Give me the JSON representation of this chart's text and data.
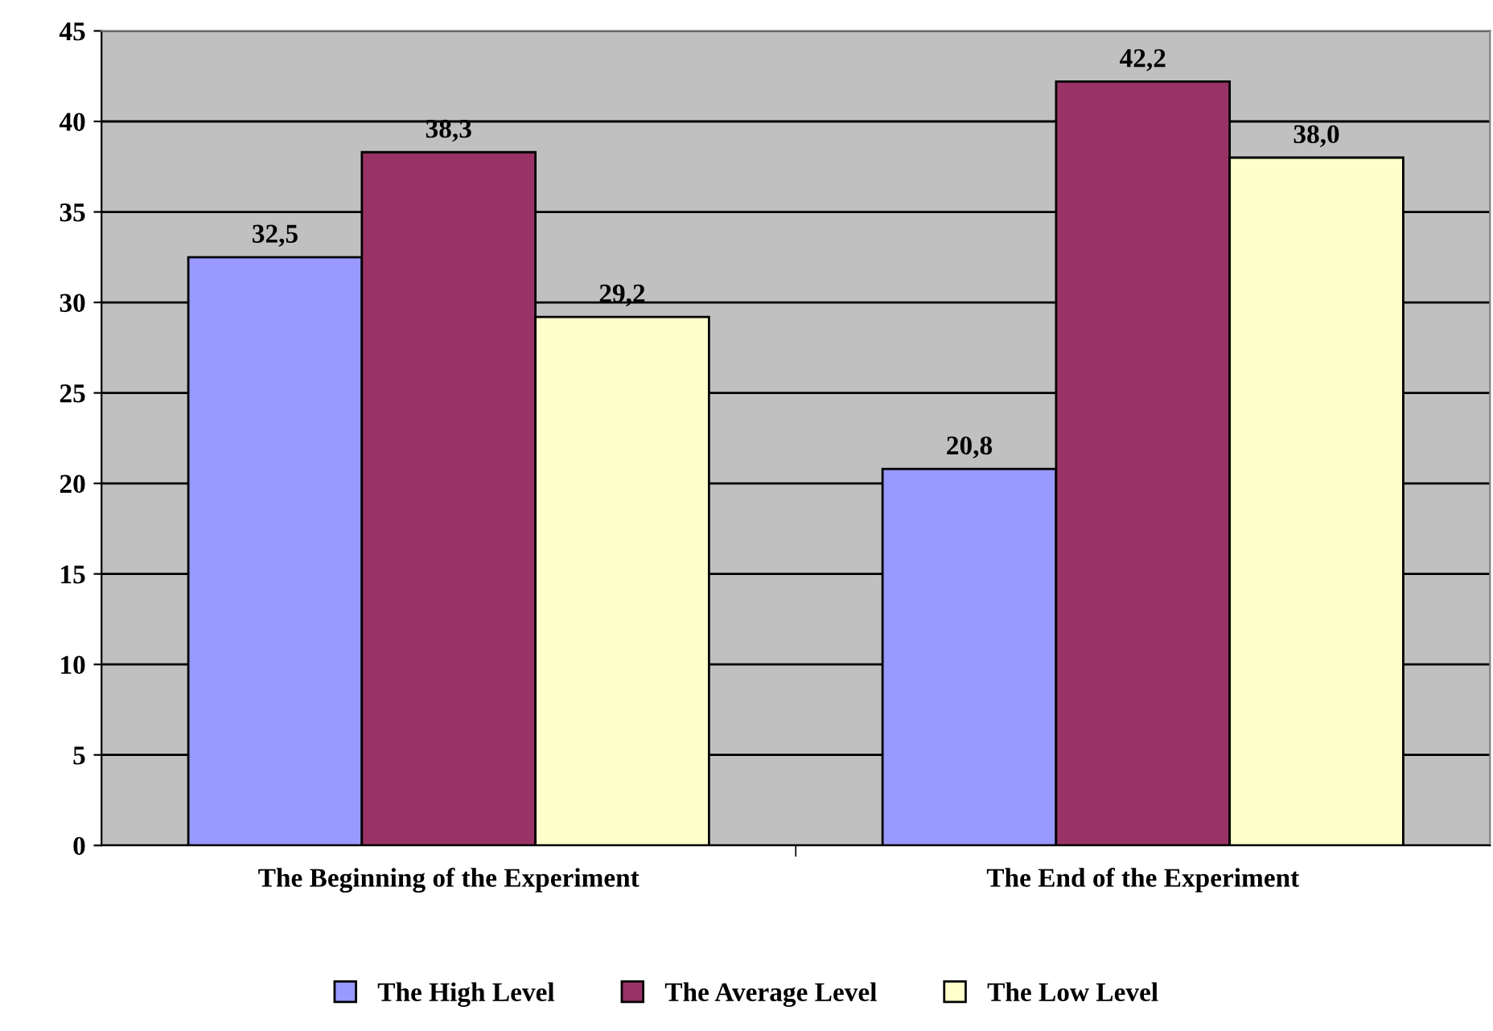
{
  "chart_data": {
    "type": "bar",
    "categories": [
      "The Beginning of the Experiment",
      "The End of the Experiment"
    ],
    "series": [
      {
        "name": "The High Level",
        "color": "#9999ff",
        "values": [
          32.5,
          20.8
        ],
        "value_labels": [
          "32,5",
          "20,8"
        ]
      },
      {
        "name": "The Average Level",
        "color": "#993366",
        "values": [
          38.3,
          42.2
        ],
        "value_labels": [
          "38,3",
          "42,2"
        ]
      },
      {
        "name": "The Low Level",
        "color": "#ffffcc",
        "values": [
          29.2,
          38.0
        ],
        "value_labels": [
          "29,2",
          "38,0"
        ]
      }
    ],
    "ylim": [
      0,
      45
    ],
    "yticks": [
      0,
      5,
      10,
      15,
      20,
      25,
      30,
      35,
      40,
      45
    ],
    "grid": "y",
    "legend": "bottom"
  }
}
